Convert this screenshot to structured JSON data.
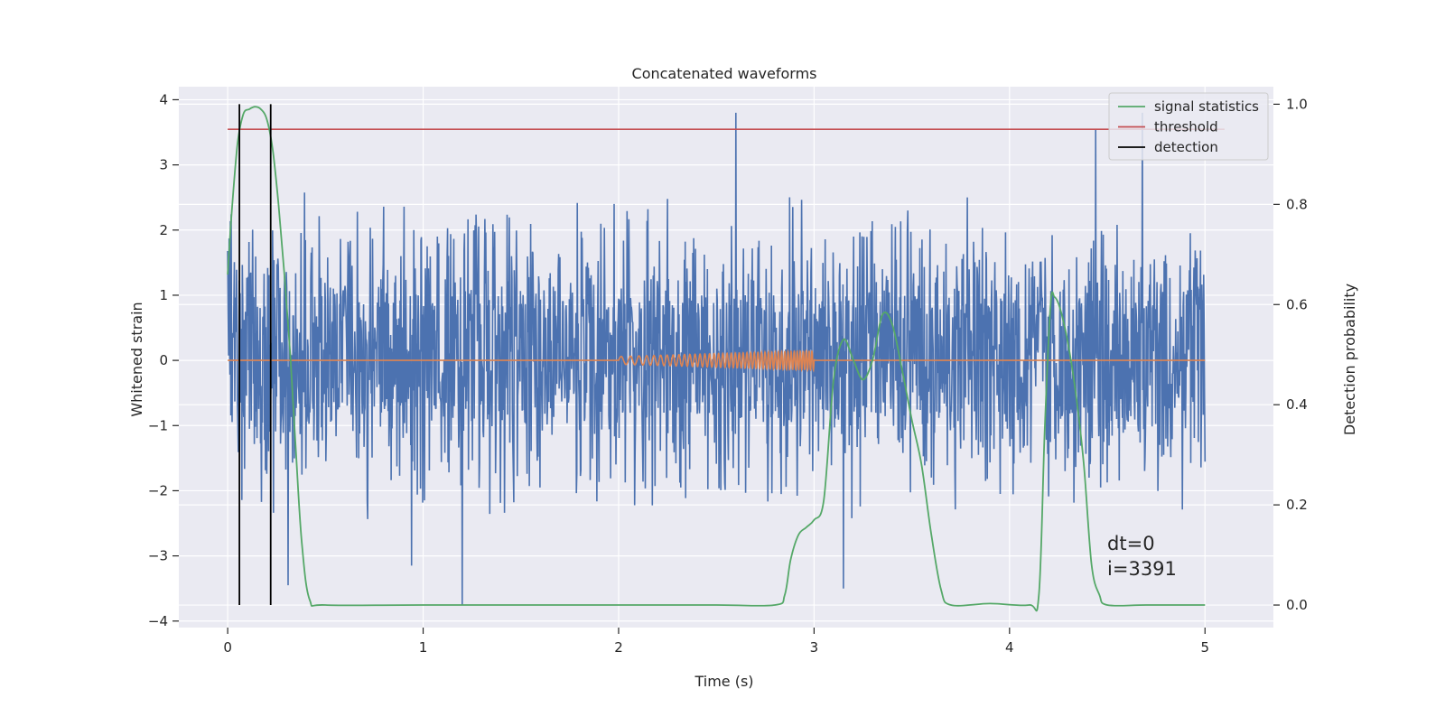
{
  "chart_data": {
    "type": "line",
    "title": "Concatenated waveforms",
    "xlabel": "Time (s)",
    "ylabel_left": "Whitened strain",
    "ylabel_right": "Detection probability",
    "xlim": [
      -0.25,
      5.35
    ],
    "ylim_left": [
      -4.1,
      4.2
    ],
    "ylim_right": [
      -0.045,
      1.035
    ],
    "x_ticks": [
      0,
      1,
      2,
      3,
      4,
      5
    ],
    "y_left_ticks": [
      -4,
      -3,
      -2,
      -1,
      0,
      1,
      2,
      3,
      4
    ],
    "y_right_ticks": [
      0.0,
      0.2,
      0.4,
      0.6,
      0.8,
      1.0
    ],
    "grid": true,
    "legend_position": "top-right",
    "colors": {
      "strain": "#4c72b0",
      "injection": "#dd8452",
      "signal_statistics": "#55a868",
      "threshold": "#c44e52",
      "detection": "#000000",
      "background": "#eaeaf2",
      "grid": "#ffffff"
    },
    "legend": [
      {
        "key": "signal_statistics",
        "label": "signal statistics"
      },
      {
        "key": "threshold",
        "label": "threshold"
      },
      {
        "key": "detection",
        "label": "detection"
      }
    ],
    "strain": {
      "x_range": [
        0,
        5
      ],
      "band": [
        -0.7,
        0.8
      ],
      "max_peak": 3.8,
      "min_peak": -3.75,
      "notable_spikes": [
        {
          "x": 2.6,
          "y": 3.8
        },
        {
          "x": 4.68,
          "y": 3.8
        },
        {
          "x": 4.44,
          "y": 3.55
        },
        {
          "x": 1.2,
          "y": -3.75
        },
        {
          "x": 3.15,
          "y": -3.5
        },
        {
          "x": 0.31,
          "y": -3.45
        },
        {
          "x": 0.94,
          "y": -3.15
        }
      ]
    },
    "injection": {
      "baseline_x_range": [
        0,
        5
      ],
      "chirp_x_range": [
        2.0,
        3.0
      ],
      "amp_start": 0.06,
      "amp_end": 0.15
    },
    "signal_statistics": {
      "x": [
        0.0,
        0.02,
        0.05,
        0.08,
        0.11,
        0.14,
        0.17,
        0.2,
        0.23,
        0.26,
        0.29,
        0.32,
        0.35,
        0.38,
        0.42,
        0.5,
        1.0,
        2.0,
        2.5,
        2.8,
        2.85,
        2.88,
        2.92,
        2.96,
        3.0,
        3.05,
        3.1,
        3.15,
        3.2,
        3.25,
        3.3,
        3.35,
        3.4,
        3.45,
        3.5,
        3.55,
        3.6,
        3.65,
        3.7,
        3.9,
        4.1,
        4.15,
        4.18,
        4.21,
        4.23,
        4.26,
        4.3,
        4.34,
        4.38,
        4.42,
        4.46,
        4.5,
        4.7,
        5.0
      ],
      "y": [
        0.66,
        0.78,
        0.92,
        0.98,
        0.99,
        0.995,
        0.99,
        0.97,
        0.91,
        0.8,
        0.66,
        0.5,
        0.3,
        0.12,
        0.01,
        0.0,
        0.0,
        0.0,
        0.0,
        0.0,
        0.02,
        0.09,
        0.14,
        0.155,
        0.17,
        0.21,
        0.45,
        0.53,
        0.49,
        0.45,
        0.49,
        0.58,
        0.56,
        0.47,
        0.37,
        0.28,
        0.14,
        0.03,
        0.0,
        0.003,
        0.0,
        0.02,
        0.35,
        0.6,
        0.615,
        0.59,
        0.52,
        0.42,
        0.28,
        0.08,
        0.02,
        0.0,
        0.0,
        0.0
      ]
    },
    "threshold": {
      "x_range": [
        0,
        5.1
      ],
      "y": 0.95
    },
    "detections": [
      0.06,
      0.22
    ],
    "detection_y_range": [
      0.0,
      1.0
    ],
    "annotation": {
      "x": 4.5,
      "line1": "dt=0",
      "line2": "i=3391"
    }
  }
}
